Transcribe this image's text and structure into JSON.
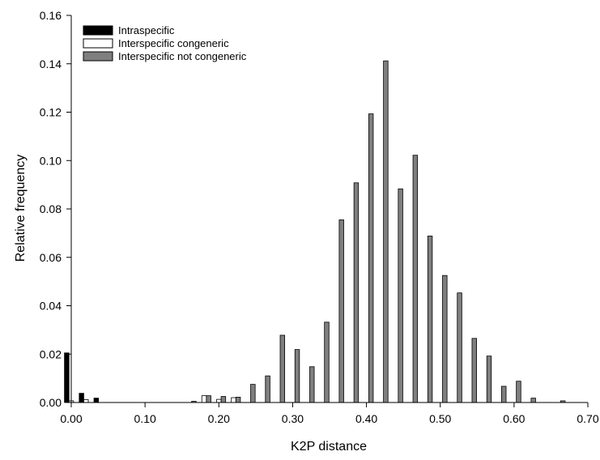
{
  "chart_data": {
    "type": "bar",
    "xlabel": "K2P distance",
    "ylabel": "Relative frequency",
    "xlim": [
      0.0,
      0.7
    ],
    "ylim": [
      0.0,
      0.16
    ],
    "xticks": [
      "0.00",
      "0.10",
      "0.20",
      "0.30",
      "0.40",
      "0.50",
      "0.60",
      "0.70"
    ],
    "yticks": [
      "0.00",
      "0.02",
      "0.04",
      "0.06",
      "0.08",
      "0.10",
      "0.12",
      "0.14",
      "0.16"
    ],
    "grid": false,
    "legend_position": "top-left",
    "x": [
      0.0,
      0.02,
      0.04,
      0.06,
      0.08,
      0.1,
      0.12,
      0.14,
      0.16,
      0.18,
      0.2,
      0.22,
      0.24,
      0.26,
      0.28,
      0.3,
      0.32,
      0.34,
      0.36,
      0.38,
      0.4,
      0.42,
      0.44,
      0.46,
      0.48,
      0.5,
      0.52,
      0.54,
      0.56,
      0.58,
      0.6,
      0.62,
      0.64,
      0.66,
      0.68
    ],
    "series": [
      {
        "name": "Intraspecific",
        "color": "#000000",
        "values": [
          0.0205,
          0.0038,
          0.0018,
          0,
          0,
          0,
          0,
          0,
          0,
          0,
          0,
          0,
          0,
          0,
          0,
          0,
          0,
          0,
          0,
          0,
          0,
          0,
          0,
          0,
          0,
          0,
          0,
          0,
          0,
          0,
          0,
          0,
          0,
          0,
          0
        ]
      },
      {
        "name": "Interspecific congeneric",
        "color": "#ffffff",
        "values": [
          0.0007,
          0.0012,
          0,
          0,
          0,
          0,
          0,
          0,
          0,
          0.0028,
          0.0013,
          0.002,
          0,
          0,
          0,
          0,
          0,
          0,
          0,
          0,
          0,
          0,
          0,
          0,
          0,
          0,
          0,
          0,
          0,
          0,
          0,
          0,
          0,
          0,
          0
        ]
      },
      {
        "name": "Interspecific not congeneric",
        "color": "#7f7f7f",
        "values": [
          0,
          0,
          0,
          0,
          0,
          0,
          0,
          0,
          0.0005,
          0.0028,
          0.0025,
          0.0022,
          0.0075,
          0.011,
          0.0278,
          0.0219,
          0.0148,
          0.0332,
          0.0755,
          0.0908,
          0.1193,
          0.1412,
          0.0883,
          0.1022,
          0.0688,
          0.0525,
          0.0453,
          0.0265,
          0.0192,
          0.0067,
          0.0088,
          0.0018,
          0,
          0.0007,
          0
        ]
      }
    ]
  }
}
